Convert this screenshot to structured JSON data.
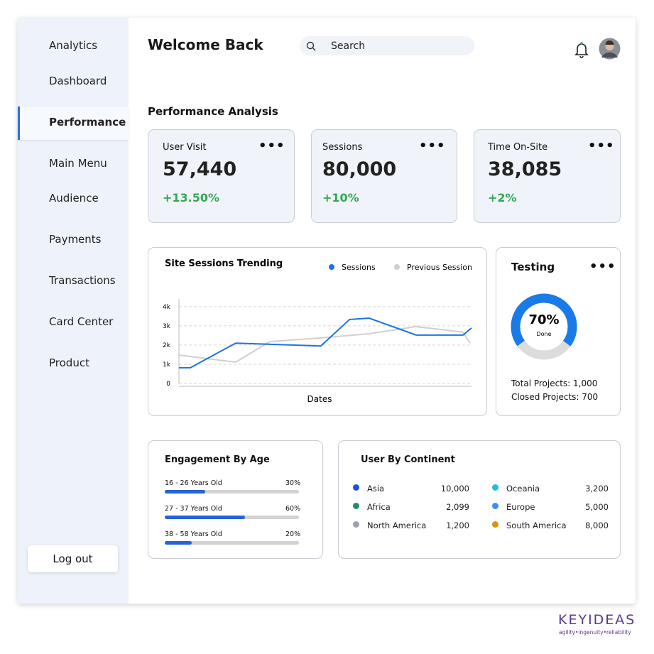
{
  "sidebar": {
    "items": [
      "Analytics",
      "Dashboard",
      "Performance",
      "Main Menu",
      "Audience",
      "Payments",
      "Transactions",
      "Card Center",
      "Product"
    ],
    "logout": "Log out"
  },
  "header": {
    "title": "Welcome Back",
    "search": "Search"
  },
  "section_title": "Performance Analysis",
  "stats": [
    {
      "title": "User Visit",
      "value": "57,440",
      "change": "+13.50%"
    },
    {
      "title": "Sessions",
      "value": "80,000",
      "change": "+10%"
    },
    {
      "title": "Time On-Site",
      "value": "38,085",
      "change": "+2%"
    }
  ],
  "chart_data": {
    "type": "line",
    "title": "Site Sessions Trending",
    "x_label": "Dates",
    "xlim": [
      0,
      100
    ],
    "ylim": [
      0,
      4400
    ],
    "yticks": [
      0,
      {
        "value": 1000,
        "label": "1k"
      },
      {
        "value": 2000,
        "label": "2k"
      },
      {
        "value": 3000,
        "label": "3k"
      },
      {
        "value": 4000,
        "label": "4k"
      }
    ],
    "grid": true,
    "series": [
      {
        "name": "Sessions",
        "color": "#1a73e8",
        "x": [
          0,
          3.9,
          19.4,
          48.5,
          58.3,
          65.0,
          81.1,
          97.1,
          100
        ],
        "values": [
          820,
          820,
          2100,
          1950,
          3330,
          3400,
          2520,
          2520,
          2890
        ]
      },
      {
        "name": "Previous Session",
        "color": "#cfcfcf",
        "x": [
          0,
          9.2,
          19.4,
          31.1,
          48.5,
          65.0,
          81.1,
          97.1,
          99.5
        ],
        "values": [
          1480,
          1300,
          1110,
          2180,
          2370,
          2590,
          2960,
          2670,
          2100
        ]
      }
    ]
  },
  "testing": {
    "title": "Testing",
    "percent": {
      "value": 70,
      "label": "70%"
    },
    "done": "Done",
    "color": "#1a7be8",
    "total": "Total Projects: 1,000",
    "closed": "Closed Projects: 700"
  },
  "engagement": {
    "title": "Engagement By Age",
    "color": "#2563d9",
    "rows": [
      {
        "label": "16 - 26 Years Old",
        "value": 30,
        "value_label": "30%"
      },
      {
        "label": "27 - 37 Years Old",
        "value": 60,
        "value_label": "60%"
      },
      {
        "label": "38 - 58 Years Old",
        "value": 20,
        "value_label": "20%"
      }
    ]
  },
  "continents": {
    "title": "User By Continent",
    "rows": [
      {
        "name": "Asia",
        "value": "10,000",
        "color": "#1f4fd6"
      },
      {
        "name": "Africa",
        "value": "2,099",
        "color": "#1f8a6e"
      },
      {
        "name": "North America",
        "value": "1,200",
        "color": "#9aa0b4"
      },
      {
        "name": "Oceania",
        "value": "3,200",
        "color": "#1ec0d6"
      },
      {
        "name": "Europe",
        "value": "5,000",
        "color": "#3b8ef0"
      },
      {
        "name": "South America",
        "value": "8,000",
        "color": "#e0900a"
      }
    ]
  },
  "brand": {
    "name": "KEYIDEAS",
    "tagline": "agility•ingenuity•reliability"
  }
}
